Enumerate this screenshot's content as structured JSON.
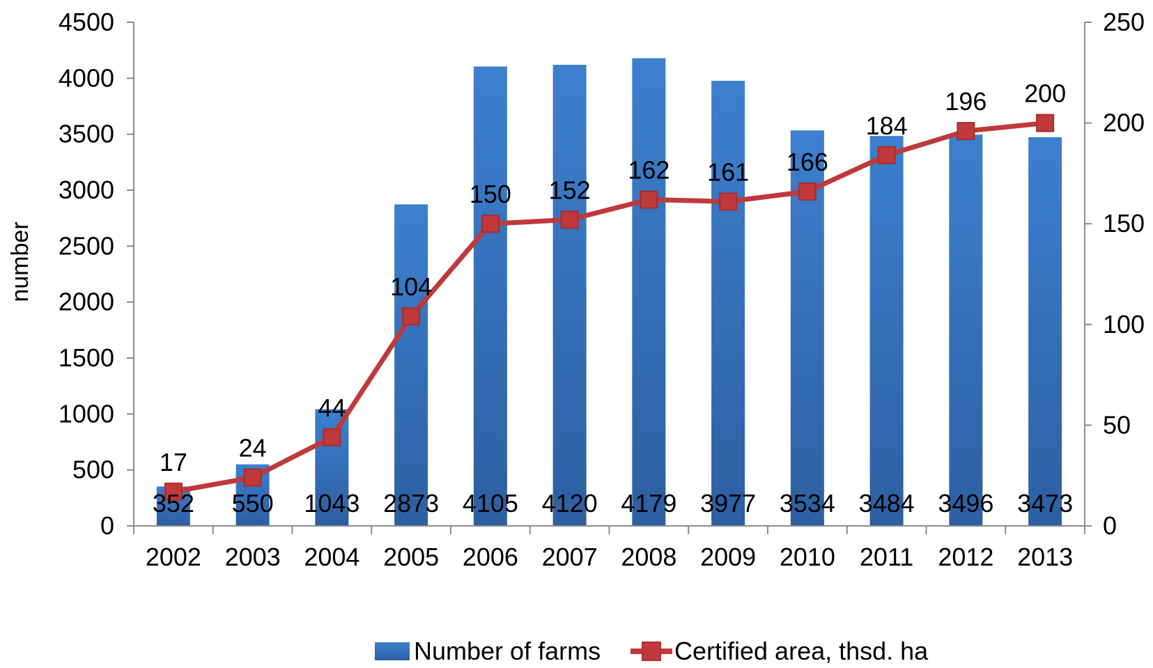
{
  "chart_data": {
    "type": "bar",
    "categories": [
      "2002",
      "2003",
      "2004",
      "2005",
      "2006",
      "2007",
      "2008",
      "2009",
      "2010",
      "2011",
      "2012",
      "2013"
    ],
    "series": [
      {
        "name": "Number of farms",
        "type": "bar",
        "axis": "left",
        "color": "#3a7bc8",
        "values": [
          352,
          550,
          1043,
          2873,
          4105,
          4120,
          4179,
          3977,
          3534,
          3484,
          3496,
          3473
        ],
        "labels": [
          "352",
          "550",
          "1043",
          "2873",
          "4105",
          "4120",
          "4179",
          "3977",
          "3534",
          "3484",
          "3496",
          "3473"
        ]
      },
      {
        "name": "Certified area, thsd. ha",
        "type": "line",
        "axis": "right",
        "color": "#c0393b",
        "values": [
          17,
          24,
          44,
          104,
          150,
          152,
          162,
          161,
          166,
          184,
          196,
          200
        ],
        "labels": [
          "17",
          "24",
          "44",
          "104",
          "150",
          "152",
          "162",
          "161",
          "166",
          "184",
          "196",
          "200"
        ]
      }
    ],
    "ylabel": "number",
    "ylim": [
      0,
      4500
    ],
    "y_ticks": [
      "0",
      "500",
      "1000",
      "1500",
      "2000",
      "2500",
      "3000",
      "3500",
      "4000",
      "4500"
    ],
    "y2lim": [
      0,
      250
    ],
    "y2_ticks": [
      "0",
      "50",
      "100",
      "150",
      "200",
      "250"
    ],
    "grid": false,
    "legend": "bottom"
  }
}
